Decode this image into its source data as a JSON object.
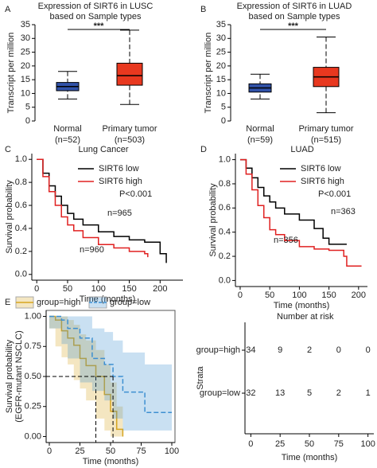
{
  "chart_data": [
    {
      "panel": "A",
      "type": "box",
      "title": [
        "Expression of SIRT6 in LUSC",
        "based on Sample types"
      ],
      "ylabel": "Transcript per million",
      "categories": [
        "Normal",
        "Primary tumor"
      ],
      "category_counts": [
        "(n=52)",
        "(n=503)"
      ],
      "boxes": [
        {
          "min": 8,
          "q1": 11,
          "median": 12.5,
          "q3": 14,
          "max": 18
        },
        {
          "min": 6,
          "q1": 13,
          "median": 16.5,
          "q3": 21,
          "max": 33
        }
      ],
      "colors": [
        "#3152a8",
        "#e8381f"
      ],
      "ylim": [
        0,
        35
      ],
      "yticks": [
        0,
        5,
        10,
        15,
        20,
        25,
        30,
        35
      ],
      "significance": "***"
    },
    {
      "panel": "B",
      "type": "box",
      "title": [
        "Expression of SIRT6 in LUAD",
        "based on Sample types"
      ],
      "ylabel": "Transcript per million",
      "categories": [
        "Normal",
        "Primary tumor"
      ],
      "category_counts": [
        "(n=59)",
        "(n=515)"
      ],
      "boxes": [
        {
          "min": 8,
          "q1": 10.5,
          "median": 12,
          "q3": 13.5,
          "max": 17
        },
        {
          "min": 3,
          "q1": 12.5,
          "median": 16,
          "q3": 19.5,
          "max": 30.5
        }
      ],
      "colors": [
        "#3152a8",
        "#e8381f"
      ],
      "ylim": [
        0,
        35
      ],
      "yticks": [
        0,
        5,
        10,
        15,
        20,
        25,
        30,
        35
      ],
      "significance": "***"
    },
    {
      "panel": "C",
      "type": "step",
      "title": "Lung Cancer",
      "xlabel": "Time (months)",
      "ylabel": "Survival probability",
      "xlim": [
        -8,
        237
      ],
      "xticks": [
        0,
        50,
        100,
        150,
        200
      ],
      "ylim": [
        -0.05,
        1.05
      ],
      "yticks": [
        {
          "value": 0,
          "label": "0.0"
        },
        0.2,
        0.4,
        0.6,
        0.8,
        {
          "value": 1,
          "label": "1.0"
        }
      ],
      "legend": "top-right",
      "annotation": "P<0.001",
      "series": [
        {
          "name": "SIRT6 low",
          "color": "#000000",
          "n_label": "n=965",
          "x": [
            0,
            10,
            20,
            30,
            40,
            50,
            60,
            75,
            100,
            125,
            150,
            175,
            200,
            210
          ],
          "values": [
            1,
            0.88,
            0.77,
            0.68,
            0.6,
            0.53,
            0.48,
            0.43,
            0.37,
            0.33,
            0.3,
            0.28,
            0.18,
            0.1
          ]
        },
        {
          "name": "SIRT6 high",
          "color": "#e02020",
          "n_label": "n=960",
          "x": [
            0,
            10,
            20,
            30,
            40,
            50,
            60,
            75,
            100,
            125,
            150,
            175,
            180
          ],
          "values": [
            1,
            0.85,
            0.72,
            0.6,
            0.5,
            0.43,
            0.38,
            0.32,
            0.26,
            0.23,
            0.2,
            0.18,
            0.15
          ]
        }
      ]
    },
    {
      "panel": "D",
      "type": "step",
      "title": "LUAD",
      "xlabel": "Time (months)",
      "ylabel": "Survival probability",
      "xlim": [
        -8,
        215
      ],
      "xticks": [
        0,
        50,
        100,
        150,
        200
      ],
      "ylim": [
        -0.05,
        1.05
      ],
      "yticks": [
        {
          "value": 0,
          "label": "0.0"
        },
        0.2,
        0.4,
        0.6,
        0.8,
        {
          "value": 1,
          "label": "1.0"
        }
      ],
      "legend": "top-right",
      "annotation": "P<0.001",
      "series": [
        {
          "name": "SIRT6 low",
          "color": "#000000",
          "n_label": "n=363",
          "x": [
            0,
            10,
            20,
            30,
            40,
            50,
            60,
            75,
            100,
            125,
            140,
            150,
            180
          ],
          "values": [
            1,
            0.93,
            0.85,
            0.77,
            0.7,
            0.65,
            0.6,
            0.55,
            0.5,
            0.43,
            0.35,
            0.3,
            0.3
          ]
        },
        {
          "name": "SIRT6 high",
          "color": "#e02020",
          "n_label": "n=356",
          "x": [
            0,
            10,
            20,
            30,
            40,
            50,
            60,
            75,
            100,
            125,
            150,
            175,
            180,
            205
          ],
          "values": [
            1,
            0.88,
            0.75,
            0.62,
            0.52,
            0.42,
            0.38,
            0.33,
            0.28,
            0.26,
            0.25,
            0.2,
            0.12,
            0.12
          ]
        }
      ]
    },
    {
      "panel": "E",
      "type": "step",
      "xlabel": "Time (months)",
      "ylabel": [
        "Survival probability",
        "(EGFR-mutant NSCLC)"
      ],
      "xlim": [
        -2.6,
        102.6
      ],
      "xticks": [
        0,
        25,
        50,
        75,
        100
      ],
      "ylim": [
        -0.05,
        1.05
      ],
      "yticks": [
        {
          "value": 0,
          "label": "0.00"
        },
        {
          "value": 0.25,
          "label": "0.25"
        },
        {
          "value": 0.5,
          "label": "0.50"
        },
        {
          "value": 0.75,
          "label": "0.75"
        },
        {
          "value": 1,
          "label": "1.00"
        }
      ],
      "legend": "top",
      "median_level": 0.5,
      "series": [
        {
          "name": "group=high",
          "color": "#d6a520",
          "dash": false,
          "median": 38,
          "x": [
            0,
            5,
            10,
            15,
            20,
            25,
            30,
            38,
            45,
            50,
            55,
            60
          ],
          "values": [
            1,
            0.97,
            0.88,
            0.82,
            0.76,
            0.65,
            0.59,
            0.5,
            0.35,
            0.21,
            0.06,
            0
          ],
          "ci_upper": [
            1,
            1,
            1,
            0.97,
            0.93,
            0.85,
            0.8,
            0.72,
            0.6,
            0.45,
            0.25,
            0.1
          ],
          "ci_lower": [
            1,
            0.9,
            0.75,
            0.66,
            0.6,
            0.47,
            0.4,
            0.3,
            0.15,
            0.05,
            0,
            0
          ]
        },
        {
          "name": "group=low",
          "color": "#3d8fd1",
          "dash": true,
          "median": 52,
          "x": [
            0,
            10,
            15,
            25,
            35,
            45,
            52,
            60,
            78,
            100
          ],
          "values": [
            1,
            0.97,
            0.9,
            0.82,
            0.65,
            0.6,
            0.5,
            0.37,
            0.2,
            0.2
          ],
          "ci_upper": [
            1,
            1,
            1,
            1,
            0.9,
            0.87,
            0.8,
            0.7,
            0.6,
            0.6
          ],
          "ci_lower": [
            1,
            0.9,
            0.77,
            0.65,
            0.45,
            0.38,
            0.3,
            0.15,
            0.05,
            0.05
          ]
        }
      ]
    },
    {
      "type": "risk_table",
      "title": "Number at risk",
      "ylabel": "Strata",
      "xlabel": "Time (months)",
      "xlim": [
        -5,
        105
      ],
      "xticks": [
        0,
        25,
        50,
        75,
        100
      ],
      "rows": [
        {
          "name": "group=high",
          "color": "#d6a520",
          "values": [
            34,
            9,
            2,
            0,
            0
          ]
        },
        {
          "name": "group=low",
          "color": "#3d8fd1",
          "values": [
            32,
            13,
            5,
            2,
            1
          ]
        }
      ]
    }
  ]
}
